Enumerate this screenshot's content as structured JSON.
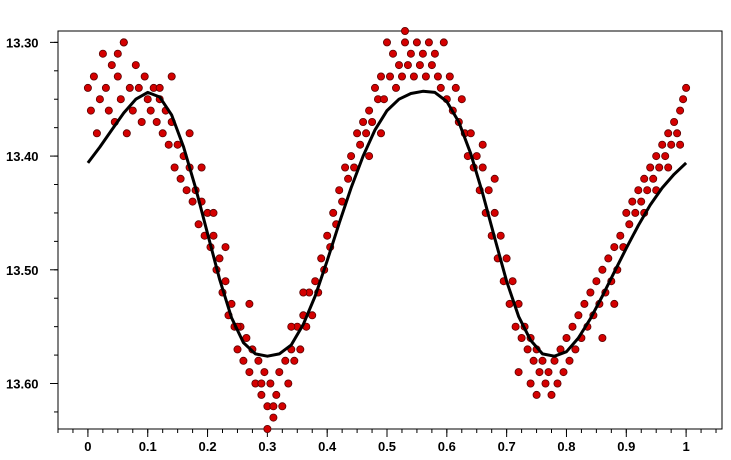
{
  "chart_data": {
    "type": "scatter",
    "title": "",
    "xlabel": "",
    "ylabel": "",
    "xlim": [
      -0.05,
      1.06
    ],
    "ylim": [
      13.29,
      13.64
    ],
    "y_inverted": true,
    "grid": false,
    "legend": "none",
    "x_ticks": [
      {
        "value": 0,
        "label": "0"
      },
      {
        "value": 0.1,
        "label": "0.1"
      },
      {
        "value": 0.2,
        "label": "0.2"
      },
      {
        "value": 0.3,
        "label": "0.3"
      },
      {
        "value": 0.4,
        "label": "0.4"
      },
      {
        "value": 0.5,
        "label": "0.5"
      },
      {
        "value": 0.6,
        "label": "0.6"
      },
      {
        "value": 0.7,
        "label": "0.7"
      },
      {
        "value": 0.8,
        "label": "0.8"
      },
      {
        "value": 0.9,
        "label": "0.9"
      },
      {
        "value": 1,
        "label": "1"
      }
    ],
    "y_ticks": [
      {
        "value": 13.3,
        "label": "13.30"
      },
      {
        "value": 13.4,
        "label": "13.40"
      },
      {
        "value": 13.5,
        "label": "13.50"
      },
      {
        "value": 13.6,
        "label": "13.60"
      }
    ],
    "x_minor_step": 0.025,
    "y_minor_step": 0.025,
    "series": [
      {
        "kind": "points",
        "color": "#d40000",
        "edge_color": "#5a0000",
        "points": [
          [
            0.0,
            13.34
          ],
          [
            0.005,
            13.36
          ],
          [
            0.01,
            13.33
          ],
          [
            0.015,
            13.38
          ],
          [
            0.02,
            13.35
          ],
          [
            0.025,
            13.31
          ],
          [
            0.03,
            13.34
          ],
          [
            0.035,
            13.36
          ],
          [
            0.04,
            13.32
          ],
          [
            0.045,
            13.37
          ],
          [
            0.05,
            13.33
          ],
          [
            0.055,
            13.35
          ],
          [
            0.06,
            13.3
          ],
          [
            0.065,
            13.38
          ],
          [
            0.07,
            13.34
          ],
          [
            0.075,
            13.36
          ],
          [
            0.08,
            13.32
          ],
          [
            0.085,
            13.34
          ],
          [
            0.09,
            13.37
          ],
          [
            0.095,
            13.33
          ],
          [
            0.1,
            13.35
          ],
          [
            0.105,
            13.36
          ],
          [
            0.11,
            13.34
          ],
          [
            0.115,
            13.37
          ],
          [
            0.12,
            13.35
          ],
          [
            0.125,
            13.38
          ],
          [
            0.13,
            13.36
          ],
          [
            0.135,
            13.39
          ],
          [
            0.14,
            13.37
          ],
          [
            0.145,
            13.41
          ],
          [
            0.15,
            13.39
          ],
          [
            0.155,
            13.42
          ],
          [
            0.16,
            13.4
          ],
          [
            0.165,
            13.43
          ],
          [
            0.17,
            13.41
          ],
          [
            0.175,
            13.44
          ],
          [
            0.18,
            13.43
          ],
          [
            0.185,
            13.46
          ],
          [
            0.19,
            13.44
          ],
          [
            0.195,
            13.47
          ],
          [
            0.2,
            13.45
          ],
          [
            0.205,
            13.48
          ],
          [
            0.21,
            13.47
          ],
          [
            0.215,
            13.5
          ],
          [
            0.22,
            13.49
          ],
          [
            0.225,
            13.52
          ],
          [
            0.23,
            13.51
          ],
          [
            0.235,
            13.54
          ],
          [
            0.24,
            13.53
          ],
          [
            0.245,
            13.55
          ],
          [
            0.25,
            13.57
          ],
          [
            0.255,
            13.55
          ],
          [
            0.26,
            13.58
          ],
          [
            0.265,
            13.56
          ],
          [
            0.27,
            13.59
          ],
          [
            0.275,
            13.57
          ],
          [
            0.28,
            13.6
          ],
          [
            0.285,
            13.58
          ],
          [
            0.29,
            13.61
          ],
          [
            0.295,
            13.59
          ],
          [
            0.3,
            13.62
          ],
          [
            0.305,
            13.6
          ],
          [
            0.31,
            13.63
          ],
          [
            0.315,
            13.61
          ],
          [
            0.32,
            13.59
          ],
          [
            0.325,
            13.62
          ],
          [
            0.33,
            13.58
          ],
          [
            0.335,
            13.6
          ],
          [
            0.34,
            13.57
          ],
          [
            0.345,
            13.58
          ],
          [
            0.35,
            13.55
          ],
          [
            0.355,
            13.57
          ],
          [
            0.36,
            13.54
          ],
          [
            0.365,
            13.55
          ],
          [
            0.37,
            13.52
          ],
          [
            0.375,
            13.54
          ],
          [
            0.38,
            13.51
          ],
          [
            0.385,
            13.52
          ],
          [
            0.39,
            13.49
          ],
          [
            0.395,
            13.5
          ],
          [
            0.4,
            13.47
          ],
          [
            0.405,
            13.48
          ],
          [
            0.41,
            13.45
          ],
          [
            0.415,
            13.46
          ],
          [
            0.42,
            13.43
          ],
          [
            0.425,
            13.44
          ],
          [
            0.43,
            13.41
          ],
          [
            0.435,
            13.42
          ],
          [
            0.44,
            13.4
          ],
          [
            0.445,
            13.41
          ],
          [
            0.45,
            13.38
          ],
          [
            0.455,
            13.39
          ],
          [
            0.46,
            13.37
          ],
          [
            0.465,
            13.38
          ],
          [
            0.47,
            13.36
          ],
          [
            0.475,
            13.37
          ],
          [
            0.48,
            13.34
          ],
          [
            0.485,
            13.35
          ],
          [
            0.49,
            13.33
          ],
          [
            0.495,
            13.35
          ],
          [
            0.5,
            13.3
          ],
          [
            0.505,
            13.33
          ],
          [
            0.51,
            13.31
          ],
          [
            0.515,
            13.34
          ],
          [
            0.52,
            13.32
          ],
          [
            0.525,
            13.33
          ],
          [
            0.53,
            13.3
          ],
          [
            0.535,
            13.32
          ],
          [
            0.54,
            13.31
          ],
          [
            0.545,
            13.33
          ],
          [
            0.55,
            13.3
          ],
          [
            0.555,
            13.32
          ],
          [
            0.56,
            13.31
          ],
          [
            0.565,
            13.33
          ],
          [
            0.57,
            13.3
          ],
          [
            0.575,
            13.32
          ],
          [
            0.58,
            13.31
          ],
          [
            0.585,
            13.33
          ],
          [
            0.59,
            13.34
          ],
          [
            0.595,
            13.3
          ],
          [
            0.6,
            13.35
          ],
          [
            0.605,
            13.33
          ],
          [
            0.61,
            13.36
          ],
          [
            0.615,
            13.34
          ],
          [
            0.62,
            13.37
          ],
          [
            0.625,
            13.35
          ],
          [
            0.63,
            13.38
          ],
          [
            0.635,
            13.4
          ],
          [
            0.64,
            13.38
          ],
          [
            0.645,
            13.41
          ],
          [
            0.65,
            13.4
          ],
          [
            0.655,
            13.43
          ],
          [
            0.66,
            13.41
          ],
          [
            0.665,
            13.45
          ],
          [
            0.67,
            13.43
          ],
          [
            0.675,
            13.47
          ],
          [
            0.68,
            13.45
          ],
          [
            0.685,
            13.49
          ],
          [
            0.69,
            13.47
          ],
          [
            0.695,
            13.51
          ],
          [
            0.7,
            13.49
          ],
          [
            0.705,
            13.53
          ],
          [
            0.71,
            13.51
          ],
          [
            0.715,
            13.55
          ],
          [
            0.72,
            13.53
          ],
          [
            0.725,
            13.56
          ],
          [
            0.73,
            13.55
          ],
          [
            0.735,
            13.57
          ],
          [
            0.74,
            13.56
          ],
          [
            0.745,
            13.58
          ],
          [
            0.75,
            13.57
          ],
          [
            0.755,
            13.59
          ],
          [
            0.76,
            13.58
          ],
          [
            0.765,
            13.6
          ],
          [
            0.77,
            13.59
          ],
          [
            0.775,
            13.61
          ],
          [
            0.78,
            13.58
          ],
          [
            0.785,
            13.6
          ],
          [
            0.79,
            13.57
          ],
          [
            0.795,
            13.59
          ],
          [
            0.8,
            13.56
          ],
          [
            0.805,
            13.58
          ],
          [
            0.81,
            13.55
          ],
          [
            0.815,
            13.57
          ],
          [
            0.82,
            13.54
          ],
          [
            0.825,
            13.56
          ],
          [
            0.83,
            13.53
          ],
          [
            0.835,
            13.55
          ],
          [
            0.84,
            13.52
          ],
          [
            0.845,
            13.54
          ],
          [
            0.85,
            13.51
          ],
          [
            0.855,
            13.53
          ],
          [
            0.86,
            13.5
          ],
          [
            0.865,
            13.52
          ],
          [
            0.87,
            13.49
          ],
          [
            0.875,
            13.51
          ],
          [
            0.88,
            13.48
          ],
          [
            0.885,
            13.5
          ],
          [
            0.89,
            13.47
          ],
          [
            0.895,
            13.48
          ],
          [
            0.9,
            13.45
          ],
          [
            0.905,
            13.46
          ],
          [
            0.91,
            13.44
          ],
          [
            0.915,
            13.45
          ],
          [
            0.92,
            13.43
          ],
          [
            0.925,
            13.44
          ],
          [
            0.93,
            13.42
          ],
          [
            0.935,
            13.43
          ],
          [
            0.94,
            13.41
          ],
          [
            0.945,
            13.42
          ],
          [
            0.95,
            13.4
          ],
          [
            0.955,
            13.41
          ],
          [
            0.96,
            13.39
          ],
          [
            0.965,
            13.4
          ],
          [
            0.97,
            13.38
          ],
          [
            0.975,
            13.39
          ],
          [
            0.98,
            13.37
          ],
          [
            0.985,
            13.38
          ],
          [
            0.99,
            13.36
          ],
          [
            0.995,
            13.35
          ],
          [
            1.0,
            13.34
          ],
          [
            0.75,
            13.61
          ],
          [
            0.74,
            13.6
          ],
          [
            0.72,
            13.59
          ],
          [
            0.3,
            13.64
          ],
          [
            0.31,
            13.62
          ],
          [
            0.29,
            13.6
          ],
          [
            0.06,
            13.3
          ],
          [
            0.05,
            13.31
          ],
          [
            0.53,
            13.29
          ],
          [
            0.12,
            13.34
          ],
          [
            0.14,
            13.33
          ],
          [
            0.25,
            13.55
          ],
          [
            0.27,
            13.53
          ],
          [
            0.34,
            13.55
          ],
          [
            0.36,
            13.52
          ],
          [
            0.66,
            13.39
          ],
          [
            0.68,
            13.42
          ],
          [
            0.86,
            13.56
          ],
          [
            0.88,
            13.53
          ],
          [
            0.93,
            13.45
          ],
          [
            0.95,
            13.43
          ],
          [
            0.97,
            13.41
          ],
          [
            0.99,
            13.39
          ],
          [
            0.47,
            13.4
          ],
          [
            0.49,
            13.38
          ],
          [
            0.23,
            13.48
          ],
          [
            0.21,
            13.45
          ],
          [
            0.19,
            13.41
          ],
          [
            0.17,
            13.38
          ]
        ]
      },
      {
        "kind": "curve",
        "color": "#000000",
        "points": [
          [
            0.0,
            13.406
          ],
          [
            0.02,
            13.392
          ],
          [
            0.04,
            13.377
          ],
          [
            0.06,
            13.362
          ],
          [
            0.08,
            13.35
          ],
          [
            0.1,
            13.344
          ],
          [
            0.12,
            13.348
          ],
          [
            0.14,
            13.364
          ],
          [
            0.16,
            13.392
          ],
          [
            0.18,
            13.428
          ],
          [
            0.2,
            13.468
          ],
          [
            0.22,
            13.508
          ],
          [
            0.24,
            13.542
          ],
          [
            0.26,
            13.564
          ],
          [
            0.28,
            13.574
          ],
          [
            0.3,
            13.576
          ],
          [
            0.32,
            13.574
          ],
          [
            0.34,
            13.566
          ],
          [
            0.36,
            13.548
          ],
          [
            0.38,
            13.523
          ],
          [
            0.4,
            13.492
          ],
          [
            0.42,
            13.459
          ],
          [
            0.44,
            13.428
          ],
          [
            0.46,
            13.4
          ],
          [
            0.48,
            13.377
          ],
          [
            0.5,
            13.36
          ],
          [
            0.52,
            13.35
          ],
          [
            0.54,
            13.345
          ],
          [
            0.56,
            13.343
          ],
          [
            0.58,
            13.344
          ],
          [
            0.6,
            13.352
          ],
          [
            0.62,
            13.37
          ],
          [
            0.64,
            13.398
          ],
          [
            0.66,
            13.433
          ],
          [
            0.68,
            13.472
          ],
          [
            0.7,
            13.51
          ],
          [
            0.72,
            13.541
          ],
          [
            0.74,
            13.562
          ],
          [
            0.76,
            13.574
          ],
          [
            0.78,
            13.576
          ],
          [
            0.8,
            13.572
          ],
          [
            0.82,
            13.56
          ],
          [
            0.84,
            13.543
          ],
          [
            0.86,
            13.523
          ],
          [
            0.88,
            13.502
          ],
          [
            0.9,
            13.481
          ],
          [
            0.92,
            13.461
          ],
          [
            0.94,
            13.443
          ],
          [
            0.96,
            13.428
          ],
          [
            0.98,
            13.416
          ],
          [
            1.0,
            13.406
          ]
        ]
      }
    ]
  }
}
